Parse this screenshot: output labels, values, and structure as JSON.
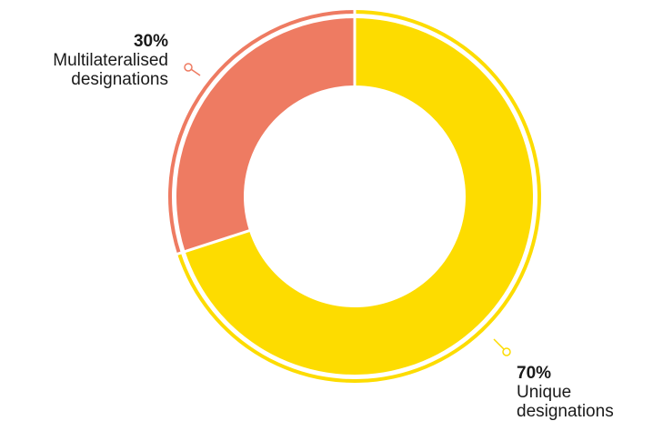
{
  "chart_data": {
    "type": "pie",
    "variant": "donut",
    "slices": [
      {
        "label_line1": "Unique",
        "label_line2": "designations",
        "value": 70,
        "value_text": "70%",
        "color": "#FDDC00"
      },
      {
        "label_line1": "Multilateralised",
        "label_line2": "designations",
        "value": 30,
        "value_text": "30%",
        "color": "#EE7B62"
      }
    ],
    "start_angle_deg": 0,
    "direction": "clockwise"
  }
}
